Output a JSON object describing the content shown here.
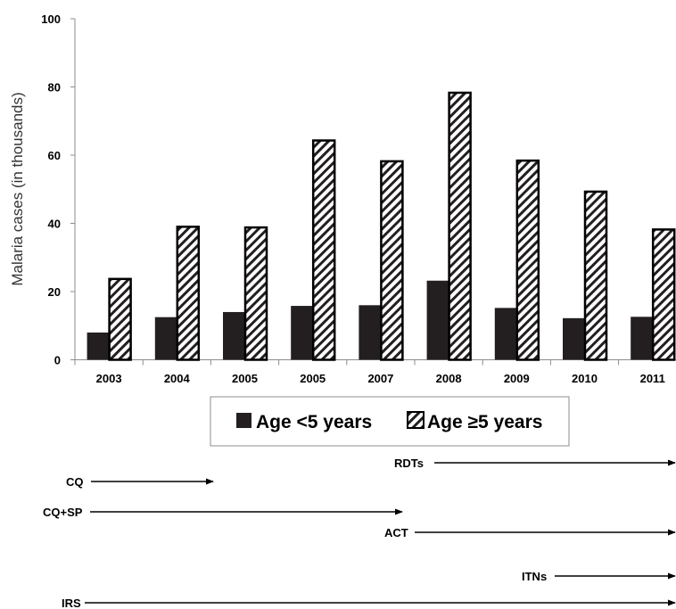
{
  "chart_data": {
    "type": "bar",
    "title": "",
    "xlabel": "",
    "ylabel": "Malaria cases (in thousands)",
    "ylim": [
      0,
      100
    ],
    "yticks": [
      0,
      20,
      40,
      60,
      80,
      100
    ],
    "grid": false,
    "legend_position": "bottom",
    "categories": [
      "2003",
      "2004",
      "2005",
      "2005",
      "2007",
      "2008",
      "2009",
      "2010",
      "2011"
    ],
    "series": [
      {
        "name": "Age <5 years",
        "fill": "solid",
        "color": "#231f20",
        "values": [
          8,
          12.5,
          14,
          15.8,
          16,
          23.2,
          15.2,
          12.2,
          12.6
        ]
      },
      {
        "name": "Age ≥5 years",
        "fill": "hatched",
        "color": "#231f20",
        "values": [
          23.7,
          39,
          38.8,
          64.3,
          58.2,
          78.3,
          58.4,
          49.3,
          38.2
        ]
      }
    ]
  },
  "timeline": [
    {
      "label": "RDTs",
      "start": "2008",
      "end": "2011"
    },
    {
      "label": "CQ",
      "start": "2003",
      "end": "2004"
    },
    {
      "label": "CQ+SP",
      "start": "2003",
      "end": "2007"
    },
    {
      "label": "ACT",
      "start": "2007",
      "end": "2011"
    },
    {
      "label": "ITNs",
      "start": "2010",
      "end": "2011"
    },
    {
      "label": "IRS",
      "start": "2003",
      "end": "2011"
    }
  ]
}
